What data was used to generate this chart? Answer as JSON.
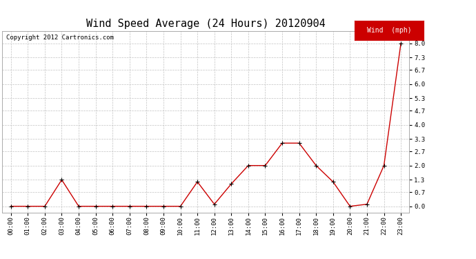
{
  "title": "Wind Speed Average (24 Hours) 20120904",
  "copyright_text": "Copyright 2012 Cartronics.com",
  "legend_label": "Wind  (mph)",
  "x_labels": [
    "00:00",
    "01:00",
    "02:00",
    "03:00",
    "04:00",
    "05:00",
    "06:00",
    "07:00",
    "08:00",
    "09:00",
    "10:00",
    "11:00",
    "12:00",
    "13:00",
    "14:00",
    "15:00",
    "16:00",
    "17:00",
    "18:00",
    "19:00",
    "20:00",
    "21:00",
    "22:00",
    "23:00"
  ],
  "y_values": [
    0.0,
    0.0,
    0.0,
    1.3,
    0.0,
    0.0,
    0.0,
    0.0,
    0.0,
    0.0,
    0.0,
    1.2,
    0.1,
    1.1,
    2.0,
    2.0,
    3.1,
    3.1,
    2.0,
    1.2,
    0.0,
    0.1,
    2.0,
    8.0
  ],
  "y_ticks": [
    0.0,
    0.7,
    1.3,
    2.0,
    2.7,
    3.3,
    4.0,
    4.7,
    5.3,
    6.0,
    6.7,
    7.3,
    8.0
  ],
  "ylim": [
    -0.3,
    8.6
  ],
  "line_color": "#cc0000",
  "marker_color": "#000000",
  "bg_color": "#ffffff",
  "grid_color": "#bbbbbb",
  "title_fontsize": 11,
  "tick_fontsize": 6.5,
  "copyright_fontsize": 6.5,
  "legend_bg": "#cc0000",
  "legend_fg": "#ffffff",
  "legend_fontsize": 7
}
